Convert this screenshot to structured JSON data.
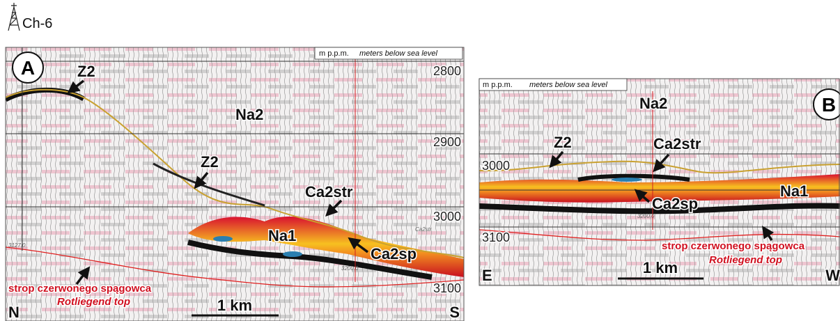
{
  "well": {
    "label": "Ch-6"
  },
  "panels": [
    {
      "letter": "A",
      "unit_note": "m p.p.m.",
      "unit_desc": "meters below sea level",
      "depths": [
        2800,
        2900,
        3000,
        3100
      ],
      "labels": [
        "Na2",
        "Z2",
        "Z2",
        "Ca2str",
        "Na1",
        "Ca2sp"
      ],
      "directions": [
        "N",
        "S"
      ],
      "scale": "1 km",
      "rotliegend_pl": "strop czerwonego spągowca",
      "rotliegend_en": "Rotliegend top",
      "small": [
        "3127.0",
        "3200.0",
        "Ca2str"
      ]
    },
    {
      "letter": "B",
      "unit_note": "m p.p.m.",
      "unit_desc": "meters below sea level",
      "depths": [
        3000,
        3100
      ],
      "labels": [
        "Na2",
        "Z2",
        "Ca2str",
        "Na1",
        "Ca2sp"
      ],
      "directions": [
        "E",
        "W"
      ],
      "scale": "1 km",
      "rotliegend_pl": "strop czerwonego spągowca",
      "rotliegend_en": "Rotliegend top",
      "small": [
        "3200.0"
      ]
    }
  ]
}
